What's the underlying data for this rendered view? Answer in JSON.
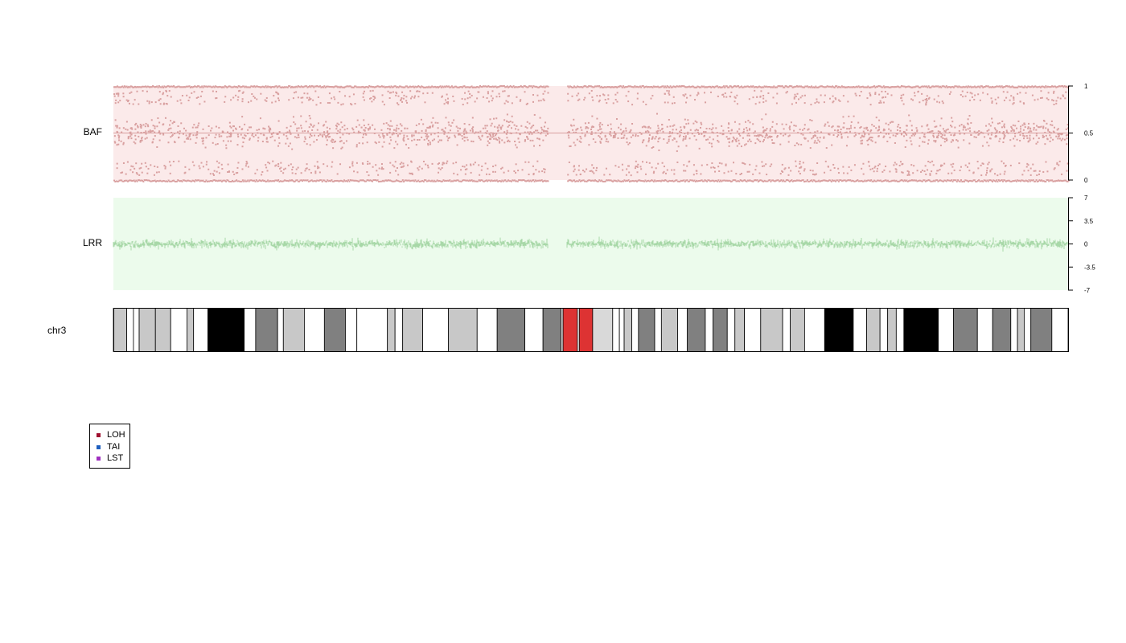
{
  "chart_data": [
    {
      "type": "scatter",
      "panel": "BAF",
      "ylabel": "BAF",
      "ylim": [
        0,
        1
      ],
      "yticks": [
        "0",
        "0.5",
        "1"
      ],
      "ytick_values": [
        0,
        0.5,
        1
      ],
      "background": "#fbeaea",
      "point_color": "#d9a0a0",
      "centromere_gap": [
        0.455,
        0.475
      ],
      "points": "dense SNP point cloud with bands at 0, 0.5 and 1"
    },
    {
      "type": "scatter",
      "panel": "LRR",
      "ylabel": "LRR",
      "ylim": [
        -7,
        7
      ],
      "yticks": [
        "-7",
        "-3.5",
        "0",
        "3.5",
        "7"
      ],
      "ytick_values": [
        -7,
        -3.5,
        0,
        3.5,
        7
      ],
      "background": "#ecfbec",
      "point_color": "#a8d8a8",
      "centromere_gap": [
        0.455,
        0.475
      ],
      "points": "dense probe signal centered near 0"
    },
    {
      "type": "ideogram",
      "label": "chr3",
      "bands": [
        {
          "s": 0.0,
          "e": 0.014,
          "c": "#c8c8c8"
        },
        {
          "s": 0.014,
          "e": 0.021,
          "c": "#ffffff"
        },
        {
          "s": 0.021,
          "e": 0.027,
          "c": "#ffffff"
        },
        {
          "s": 0.027,
          "e": 0.044,
          "c": "#c8c8c8"
        },
        {
          "s": 0.044,
          "e": 0.06,
          "c": "#c8c8c8"
        },
        {
          "s": 0.06,
          "e": 0.077,
          "c": "#ffffff"
        },
        {
          "s": 0.077,
          "e": 0.084,
          "c": "#c8c8c8"
        },
        {
          "s": 0.084,
          "e": 0.099,
          "c": "#ffffff"
        },
        {
          "s": 0.099,
          "e": 0.137,
          "c": "#000000"
        },
        {
          "s": 0.137,
          "e": 0.149,
          "c": "#ffffff"
        },
        {
          "s": 0.149,
          "e": 0.172,
          "c": "#808080"
        },
        {
          "s": 0.172,
          "e": 0.178,
          "c": "#ffffff"
        },
        {
          "s": 0.178,
          "e": 0.2,
          "c": "#c8c8c8"
        },
        {
          "s": 0.2,
          "e": 0.221,
          "c": "#ffffff"
        },
        {
          "s": 0.221,
          "e": 0.243,
          "c": "#808080"
        },
        {
          "s": 0.243,
          "e": 0.255,
          "c": "#ffffff"
        },
        {
          "s": 0.255,
          "e": 0.287,
          "c": "#ffffff"
        },
        {
          "s": 0.287,
          "e": 0.295,
          "c": "#c8c8c8"
        },
        {
          "s": 0.295,
          "e": 0.303,
          "c": "#ffffff"
        },
        {
          "s": 0.303,
          "e": 0.324,
          "c": "#c8c8c8"
        },
        {
          "s": 0.324,
          "e": 0.351,
          "c": "#ffffff"
        },
        {
          "s": 0.351,
          "e": 0.381,
          "c": "#c8c8c8"
        },
        {
          "s": 0.381,
          "e": 0.402,
          "c": "#ffffff"
        },
        {
          "s": 0.402,
          "e": 0.431,
          "c": "#808080"
        },
        {
          "s": 0.431,
          "e": 0.45,
          "c": "#ffffff"
        },
        {
          "s": 0.45,
          "e": 0.469,
          "c": "#808080"
        },
        {
          "s": 0.469,
          "e": 0.471,
          "c": "#ffffff"
        },
        {
          "s": 0.471,
          "e": 0.486,
          "c": "#dd3333"
        },
        {
          "s": 0.486,
          "e": 0.488,
          "c": "#ffffff"
        },
        {
          "s": 0.488,
          "e": 0.502,
          "c": "#dd3333"
        },
        {
          "s": 0.502,
          "e": 0.523,
          "c": "#d9d9d9"
        },
        {
          "s": 0.523,
          "e": 0.53,
          "c": "#ffffff"
        },
        {
          "s": 0.53,
          "e": 0.535,
          "c": "#ffffff"
        },
        {
          "s": 0.535,
          "e": 0.543,
          "c": "#c8c8c8"
        },
        {
          "s": 0.543,
          "e": 0.55,
          "c": "#ffffff"
        },
        {
          "s": 0.55,
          "e": 0.567,
          "c": "#808080"
        },
        {
          "s": 0.567,
          "e": 0.574,
          "c": "#ffffff"
        },
        {
          "s": 0.574,
          "e": 0.591,
          "c": "#c8c8c8"
        },
        {
          "s": 0.591,
          "e": 0.601,
          "c": "#ffffff"
        },
        {
          "s": 0.601,
          "e": 0.62,
          "c": "#808080"
        },
        {
          "s": 0.62,
          "e": 0.628,
          "c": "#ffffff"
        },
        {
          "s": 0.628,
          "e": 0.643,
          "c": "#808080"
        },
        {
          "s": 0.643,
          "e": 0.651,
          "c": "#ffffff"
        },
        {
          "s": 0.651,
          "e": 0.661,
          "c": "#c8c8c8"
        },
        {
          "s": 0.661,
          "e": 0.678,
          "c": "#ffffff"
        },
        {
          "s": 0.678,
          "e": 0.701,
          "c": "#c8c8c8"
        },
        {
          "s": 0.701,
          "e": 0.709,
          "c": "#ffffff"
        },
        {
          "s": 0.709,
          "e": 0.724,
          "c": "#c8c8c8"
        },
        {
          "s": 0.724,
          "e": 0.745,
          "c": "#ffffff"
        },
        {
          "s": 0.745,
          "e": 0.775,
          "c": "#000000"
        },
        {
          "s": 0.775,
          "e": 0.789,
          "c": "#ffffff"
        },
        {
          "s": 0.789,
          "e": 0.803,
          "c": "#c8c8c8"
        },
        {
          "s": 0.803,
          "e": 0.811,
          "c": "#ffffff"
        },
        {
          "s": 0.811,
          "e": 0.82,
          "c": "#c8c8c8"
        },
        {
          "s": 0.82,
          "e": 0.828,
          "c": "#ffffff"
        },
        {
          "s": 0.828,
          "e": 0.864,
          "c": "#000000"
        },
        {
          "s": 0.864,
          "e": 0.88,
          "c": "#ffffff"
        },
        {
          "s": 0.88,
          "e": 0.905,
          "c": "#808080"
        },
        {
          "s": 0.905,
          "e": 0.921,
          "c": "#ffffff"
        },
        {
          "s": 0.921,
          "e": 0.94,
          "c": "#808080"
        },
        {
          "s": 0.94,
          "e": 0.947,
          "c": "#ffffff"
        },
        {
          "s": 0.947,
          "e": 0.954,
          "c": "#c8c8c8"
        },
        {
          "s": 0.954,
          "e": 0.961,
          "c": "#ffffff"
        },
        {
          "s": 0.961,
          "e": 0.983,
          "c": "#808080"
        },
        {
          "s": 0.983,
          "e": 1.0,
          "c": "#ffffff"
        }
      ]
    }
  ],
  "legend": {
    "items": [
      {
        "label": "LOH",
        "color": "#a01030"
      },
      {
        "label": "TAI",
        "color": "#1f5fbf"
      },
      {
        "label": "LST",
        "color": "#a030c0"
      }
    ]
  }
}
